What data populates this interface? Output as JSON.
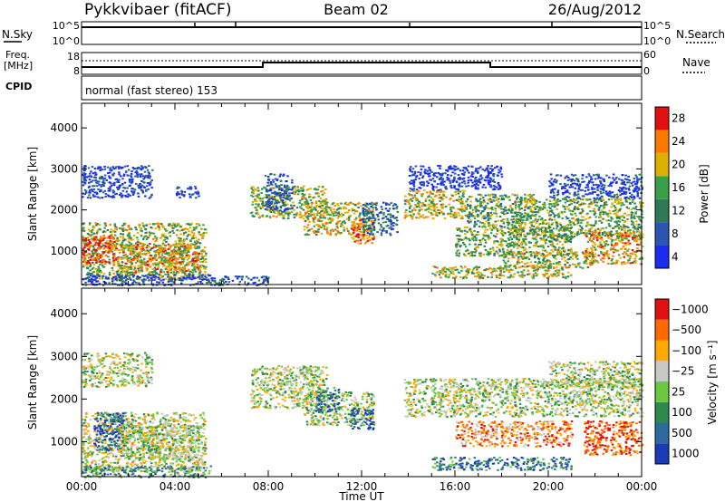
{
  "header": {
    "radar": "Pykkvibaer (fitACF)",
    "beam": "Beam 02",
    "date": "26/Aug/2012"
  },
  "summary": {
    "nsky_label": "N.Sky",
    "nsky_ticks": [
      "10^5",
      "10^0"
    ],
    "nsearch_label": "N.Search",
    "nsearch_ticks": [
      "10^5",
      "10^0"
    ],
    "freq_label_1": "Freq.",
    "freq_label_2": "[MHz]",
    "freq_ticks": [
      "18",
      "8"
    ],
    "nave_label": "Nave",
    "nave_ticks": [
      "60",
      "0"
    ],
    "cpid_label": "CPID",
    "cpid_text": "normal (fast stereo) 153"
  },
  "chart_data": [
    {
      "type": "heatmap",
      "name": "power-panel",
      "ylabel": "Slant Range [km]",
      "xlabel": "",
      "x_range_hours": [
        0,
        24
      ],
      "ylim": [
        180,
        4600
      ],
      "y_ticks": [
        1000,
        2000,
        3000,
        4000
      ],
      "x_tick_labels": [
        "00:00",
        "04:00",
        "08:00",
        "12:00",
        "16:00",
        "20:00",
        "00:00"
      ],
      "colorbar": {
        "label": "Power [dB]",
        "tick_labels": [
          "4",
          "8",
          "12",
          "16",
          "20",
          "24",
          "28"
        ],
        "colors": [
          "#1a2cf0",
          "#2a55b0",
          "#2e7a55",
          "#38a048",
          "#e0b000",
          "#ff7800",
          "#e01010"
        ]
      },
      "regions": [
        {
          "x": [
            0.0,
            5.3
          ],
          "y": [
            300,
            1700
          ],
          "level": 0.55
        },
        {
          "x": [
            0.0,
            1.5
          ],
          "y": [
            700,
            1400
          ],
          "level": 0.9
        },
        {
          "x": [
            1.5,
            5.0
          ],
          "y": [
            500,
            1200
          ],
          "level": 0.7
        },
        {
          "x": [
            0.0,
            3.0
          ],
          "y": [
            2300,
            3100
          ],
          "level": 0.12
        },
        {
          "x": [
            4.0,
            5.0
          ],
          "y": [
            2300,
            2600
          ],
          "level": 0.1
        },
        {
          "x": [
            0.0,
            5.5
          ],
          "y": [
            180,
            450
          ],
          "level": 0.15
        },
        {
          "x": [
            5.5,
            8.0
          ],
          "y": [
            180,
            400
          ],
          "level": 0.2
        },
        {
          "x": [
            7.2,
            10.5
          ],
          "y": [
            1800,
            2600
          ],
          "level": 0.55
        },
        {
          "x": [
            7.8,
            9.0
          ],
          "y": [
            2000,
            2900
          ],
          "level": 0.2
        },
        {
          "x": [
            9.5,
            12.5
          ],
          "y": [
            1400,
            2200
          ],
          "level": 0.6
        },
        {
          "x": [
            11.5,
            12.5
          ],
          "y": [
            1200,
            1800
          ],
          "level": 0.8
        },
        {
          "x": [
            12.0,
            13.5
          ],
          "y": [
            1400,
            2200
          ],
          "level": 0.25
        },
        {
          "x": [
            13.8,
            16.5
          ],
          "y": [
            1800,
            2500
          ],
          "level": 0.6
        },
        {
          "x": [
            16.5,
            19.5
          ],
          "y": [
            1600,
            2400
          ],
          "level": 0.45
        },
        {
          "x": [
            14.0,
            18.0
          ],
          "y": [
            2500,
            3100
          ],
          "level": 0.08
        },
        {
          "x": [
            16.0,
            21.0
          ],
          "y": [
            900,
            1600
          ],
          "level": 0.5
        },
        {
          "x": [
            18.5,
            24.0
          ],
          "y": [
            1300,
            2300
          ],
          "level": 0.5
        },
        {
          "x": [
            21.5,
            24.0
          ],
          "y": [
            700,
            1500
          ],
          "level": 0.7
        },
        {
          "x": [
            18.0,
            22.0
          ],
          "y": [
            600,
            1000
          ],
          "level": 0.55
        },
        {
          "x": [
            15.0,
            21.0
          ],
          "y": [
            350,
            650
          ],
          "level": 0.6
        },
        {
          "x": [
            20.0,
            24.0
          ],
          "y": [
            2300,
            2900
          ],
          "level": 0.15
        }
      ]
    },
    {
      "type": "heatmap",
      "name": "velocity-panel",
      "ylabel": "Slant Range [km]",
      "xlabel": "Time UT",
      "x_range_hours": [
        0,
        24
      ],
      "ylim": [
        180,
        4600
      ],
      "y_ticks": [
        1000,
        2000,
        3000,
        4000
      ],
      "x_tick_labels": [
        "00:00",
        "04:00",
        "08:00",
        "12:00",
        "16:00",
        "20:00",
        "00:00"
      ],
      "colorbar": {
        "label": "Velocity [m s⁻¹]",
        "tick_labels": [
          "1000",
          "500",
          "100",
          "25",
          "−25",
          "−100",
          "−500",
          "−1000"
        ],
        "colors": [
          "#1a3ab8",
          "#2d6aa0",
          "#2c8a4a",
          "#6cc840",
          "#c8c8c4",
          "#ffaa00",
          "#ff6a00",
          "#e01010"
        ]
      },
      "regions": [
        {
          "x": [
            0.0,
            5.3
          ],
          "y": [
            300,
            1700
          ],
          "level": 0.55
        },
        {
          "x": [
            0.5,
            1.8
          ],
          "y": [
            800,
            1700
          ],
          "level": 0.1
        },
        {
          "x": [
            1.5,
            5.0
          ],
          "y": [
            600,
            1400
          ],
          "level": 0.5
        },
        {
          "x": [
            0.0,
            3.0
          ],
          "y": [
            2300,
            3100
          ],
          "level": 0.5
        },
        {
          "x": [
            0.0,
            5.5
          ],
          "y": [
            180,
            450
          ],
          "level": 0.3
        },
        {
          "x": [
            7.2,
            10.5
          ],
          "y": [
            1800,
            2800
          ],
          "level": 0.5
        },
        {
          "x": [
            9.5,
            12.5
          ],
          "y": [
            1400,
            2200
          ],
          "level": 0.5
        },
        {
          "x": [
            11.5,
            12.5
          ],
          "y": [
            1300,
            1800
          ],
          "level": 0.12
        },
        {
          "x": [
            10.0,
            11.0
          ],
          "y": [
            1700,
            2300
          ],
          "level": 0.2
        },
        {
          "x": [
            13.8,
            24.0
          ],
          "y": [
            1600,
            2500
          ],
          "level": 0.5
        },
        {
          "x": [
            16.0,
            21.0
          ],
          "y": [
            900,
            1500
          ],
          "level": 0.75
        },
        {
          "x": [
            21.5,
            24.0
          ],
          "y": [
            700,
            1500
          ],
          "level": 0.85
        },
        {
          "x": [
            15.0,
            21.0
          ],
          "y": [
            350,
            650
          ],
          "level": 0.2
        },
        {
          "x": [
            20.0,
            24.0
          ],
          "y": [
            2300,
            2900
          ],
          "level": 0.5
        }
      ]
    }
  ]
}
